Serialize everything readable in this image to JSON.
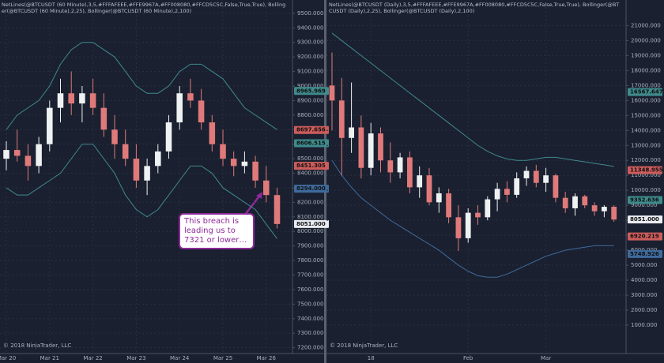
{
  "chart_data": [
    {
      "type": "candlestick",
      "title": "NetLines(@BTCUSDT (60 Minute),3,5,#FFFAFEEE,#FFE9967A,#FF008080,#FFCD5C5C,False,True,True), Bollinger(@BTCUSDT (60 Minute),2,25), Bollinger(@BTCUSDT (60 Minute),2,100)",
      "footer": "© 2018 NinjaTrader, LLC",
      "annotation": "This breach is leading us to 7321 or lower…",
      "categories": [
        "Mar 20",
        null,
        null,
        null,
        "Mar 21",
        null,
        null,
        null,
        "Mar 22",
        null,
        null,
        null,
        "Mar 23",
        null,
        null,
        null,
        "Mar 24",
        null,
        null,
        null,
        "Mar 25",
        null,
        null,
        null,
        "Mar 26",
        null
      ],
      "open": [
        8500,
        8560,
        8520,
        8450,
        8600,
        8850,
        8950,
        8880,
        8950,
        8850,
        8700,
        8600,
        8500,
        8350,
        8450,
        8550,
        8750,
        8950,
        8900,
        8750,
        8600,
        8500,
        8450,
        8480,
        8350,
        8250
      ],
      "high": [
        8620,
        8700,
        8600,
        8650,
        8900,
        9050,
        9100,
        9000,
        9050,
        8950,
        8800,
        8700,
        8600,
        8500,
        8600,
        8800,
        9000,
        9050,
        8980,
        8800,
        8700,
        8550,
        8550,
        8520,
        8450,
        8300
      ],
      "low": [
        8420,
        8480,
        8350,
        8400,
        8550,
        8750,
        8800,
        8750,
        8800,
        8650,
        8500,
        8450,
        8300,
        8250,
        8400,
        8500,
        8700,
        8850,
        8700,
        8550,
        8450,
        8380,
        8400,
        8300,
        8200,
        8020
      ],
      "close": [
        8560,
        8520,
        8450,
        8600,
        8850,
        8950,
        8880,
        8950,
        8850,
        8700,
        8600,
        8500,
        8350,
        8450,
        8550,
        8750,
        8950,
        8900,
        8750,
        8600,
        8500,
        8450,
        8480,
        8350,
        8250,
        8051
      ],
      "up_color": "#eef2f2",
      "down_color": "#e07a7a",
      "bands": [
        {
          "color": "#3f8a8c",
          "values": [
            8700,
            8800,
            8850,
            8900,
            9000,
            9150,
            9250,
            9300,
            9300,
            9250,
            9200,
            9100,
            9000,
            8950,
            8950,
            9000,
            9100,
            9150,
            9150,
            9100,
            9050,
            8950,
            8850,
            8800,
            8750,
            8700
          ]
        },
        {
          "color": "#3f8a8c",
          "values": [
            8300,
            8250,
            8250,
            8300,
            8350,
            8400,
            8500,
            8600,
            8600,
            8500,
            8400,
            8250,
            8150,
            8100,
            8150,
            8250,
            8350,
            8450,
            8450,
            8400,
            8300,
            8250,
            8200,
            8150,
            8050,
            7950
          ]
        }
      ],
      "ylim": [
        7160,
        9570
      ],
      "yticks": [
        {
          "value": 7200,
          "label": "7200.000"
        },
        {
          "value": 7300,
          "label": "7300.000"
        },
        {
          "value": 7400,
          "label": "7400.000"
        },
        {
          "value": 7500,
          "label": "7500.000"
        },
        {
          "value": 7600,
          "label": "7600.000"
        },
        {
          "value": 7700,
          "label": "7700.000"
        },
        {
          "value": 7800,
          "label": "7800.000"
        },
        {
          "value": 7900,
          "label": "7900.000"
        },
        {
          "value": 8000,
          "label": "8000.000"
        },
        {
          "value": 8100,
          "label": "8100.000"
        },
        {
          "value": 8200,
          "label": "8200.000"
        },
        {
          "value": 8300,
          "label": "8300.000"
        },
        {
          "value": 8400,
          "label": "8400.000"
        },
        {
          "value": 8500,
          "label": "8500.000"
        },
        {
          "value": 8600,
          "label": "8600.000"
        },
        {
          "value": 8700,
          "label": "8700.000"
        },
        {
          "value": 8800,
          "label": "8800.000"
        },
        {
          "value": 8900,
          "label": "8900.000"
        },
        {
          "value": 9000,
          "label": "9000.000"
        },
        {
          "value": 9100,
          "label": "9100.000"
        },
        {
          "value": 9200,
          "label": "9200.000"
        },
        {
          "value": 9300,
          "label": "9300.000"
        },
        {
          "value": 9400,
          "label": "9400.000"
        },
        {
          "value": 9500,
          "label": "9500.000"
        }
      ],
      "price_tags": [
        {
          "value": 8965.969,
          "label": "8965.969",
          "color": "#3f8a8c"
        },
        {
          "value": 8697.656,
          "label": "8697.656",
          "color": "#cd5c5c"
        },
        {
          "value": 8606.515,
          "label": "8606.515",
          "color": "#3f8a8c"
        },
        {
          "value": 8451.305,
          "label": "8451.305",
          "color": "#cd5c5c"
        },
        {
          "value": 8294,
          "label": "8294.000",
          "color": "#3f6a9c"
        },
        {
          "value": 8051,
          "label": "8051.000",
          "color": "#e8ecf0"
        }
      ]
    },
    {
      "type": "candlestick",
      "title": "NetLines(@BTCUSDT (Daily),3,5,#FFFAFEEE,#FFE9967A,#FF008080,#FFCD5C5C,False,True,True), Bollinger(@BTCUSDT (Daily),2,25), Bollinger(@BTCUSDT (Daily),2,100)",
      "footer": "© 2018 NinjaTrader, LLC",
      "categories": [
        null,
        null,
        null,
        null,
        "18",
        null,
        null,
        null,
        null,
        null,
        null,
        null,
        null,
        null,
        "Feb",
        null,
        null,
        null,
        null,
        null,
        null,
        null,
        "Mar",
        null,
        null,
        null,
        null,
        null,
        null,
        null
      ],
      "open": [
        17000,
        16000,
        13500,
        14200,
        11500,
        13800,
        12000,
        11200,
        12200,
        10200,
        11000,
        9200,
        9800,
        8200,
        6800,
        8500,
        8200,
        9400,
        10100,
        9700,
        10800,
        11300,
        10500,
        11000,
        9500,
        8800,
        9600,
        9000,
        8600,
        8900
      ],
      "high": [
        19200,
        17500,
        17200,
        15000,
        14500,
        14200,
        13200,
        12500,
        12600,
        11600,
        11500,
        10200,
        10100,
        9000,
        8800,
        9000,
        9600,
        10500,
        10600,
        11200,
        11600,
        11700,
        11500,
        11100,
        9900,
        9800,
        9700,
        9200,
        9000,
        9000
      ],
      "low": [
        14000,
        11000,
        12500,
        10800,
        11000,
        11200,
        10500,
        10800,
        9800,
        9500,
        9000,
        8500,
        7800,
        5950,
        6500,
        7700,
        8000,
        8600,
        9200,
        9500,
        10300,
        10200,
        9900,
        9200,
        8500,
        8300,
        8800,
        8300,
        8200,
        7900
      ],
      "close": [
        16000,
        13500,
        14200,
        11500,
        13800,
        12000,
        11200,
        12200,
        10200,
        11000,
        9200,
        9800,
        8200,
        6800,
        8500,
        8200,
        9400,
        10100,
        9700,
        10800,
        11300,
        10500,
        11000,
        9500,
        8800,
        9600,
        9000,
        8600,
        8900,
        8051
      ],
      "up_color": "#eef2f2",
      "down_color": "#e07a7a",
      "bands": [
        {
          "color": "#3f8a8c",
          "values": [
            20500,
            20000,
            19500,
            19000,
            18500,
            18000,
            17500,
            17000,
            16500,
            16000,
            15500,
            15000,
            14500,
            14000,
            13500,
            13000,
            12600,
            12300,
            12100,
            12000,
            12000,
            12100,
            12200,
            12200,
            12100,
            12000,
            11900,
            11800,
            11700,
            11600
          ]
        },
        {
          "color": "#3f6a9c",
          "values": [
            12000,
            11000,
            10200,
            9500,
            9000,
            8500,
            8000,
            7600,
            7200,
            6800,
            6400,
            6000,
            5500,
            5000,
            4600,
            4300,
            4200,
            4200,
            4400,
            4700,
            5000,
            5300,
            5600,
            5800,
            6000,
            6100,
            6200,
            6300,
            6300,
            6300
          ]
        }
      ],
      "ylim": [
        -900,
        22500
      ],
      "yticks": [
        {
          "value": 1000,
          "label": "1000.000"
        },
        {
          "value": 2000,
          "label": "2000.000"
        },
        {
          "value": 3000,
          "label": "3000.000"
        },
        {
          "value": 4000,
          "label": "4000.000"
        },
        {
          "value": 5000,
          "label": "5000.000"
        },
        {
          "value": 6000,
          "label": "6000.000"
        },
        {
          "value": 7000,
          "label": "7000.000"
        },
        {
          "value": 8000,
          "label": "8000.000"
        },
        {
          "value": 9000,
          "label": "9000.000"
        },
        {
          "value": 10000,
          "label": "10000.000"
        },
        {
          "value": 11000,
          "label": "11000.000"
        },
        {
          "value": 12000,
          "label": "12000.000"
        },
        {
          "value": 13000,
          "label": "13000.000"
        },
        {
          "value": 14000,
          "label": "14000.000"
        },
        {
          "value": 15000,
          "label": "15000.000"
        },
        {
          "value": 16000,
          "label": "16000.000"
        },
        {
          "value": 17000,
          "label": "17000.000"
        },
        {
          "value": 18000,
          "label": "18000.000"
        },
        {
          "value": 19000,
          "label": "19000.000"
        },
        {
          "value": 20000,
          "label": "20000.000"
        },
        {
          "value": 21000,
          "label": "21000.000"
        }
      ],
      "price_tags": [
        {
          "value": 16567.647,
          "label": "16567.647",
          "color": "#3f8a8c"
        },
        {
          "value": 11348.955,
          "label": "11348.955",
          "color": "#cd5c5c"
        },
        {
          "value": 9352.636,
          "label": "9352.636",
          "color": "#3f8a8c"
        },
        {
          "value": 8051,
          "label": "8051.000",
          "color": "#e8ecf0"
        },
        {
          "value": 6920.219,
          "label": "6920.219",
          "color": "#cd5c5c"
        },
        {
          "value": 5748.926,
          "label": "5748.926",
          "color": "#3f6a9c"
        }
      ]
    }
  ]
}
